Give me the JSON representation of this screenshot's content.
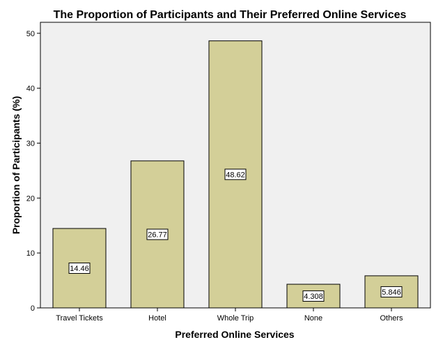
{
  "chart_data": {
    "type": "bar",
    "title": "The Proportion of Participants and Their Preferred Online Services",
    "xlabel": "Preferred Online Services",
    "ylabel": "Proportion of Participants (%)",
    "categories": [
      "Travel Tickets",
      "Hotel",
      "Whole Trip",
      "None",
      "Others"
    ],
    "values": [
      14.46,
      26.77,
      48.62,
      4.308,
      5.846
    ],
    "data_labels": [
      "14.46",
      "26.77",
      "48.62",
      "4.308",
      "5.846"
    ],
    "yticks": [
      0,
      10,
      20,
      30,
      40,
      50
    ],
    "ylim": [
      0,
      52
    ],
    "grid": false,
    "legend": "none",
    "colors": {
      "bar_fill": "#d3cf98",
      "plot_background": "#f0f0f0",
      "bar_stroke": "#000000"
    }
  }
}
